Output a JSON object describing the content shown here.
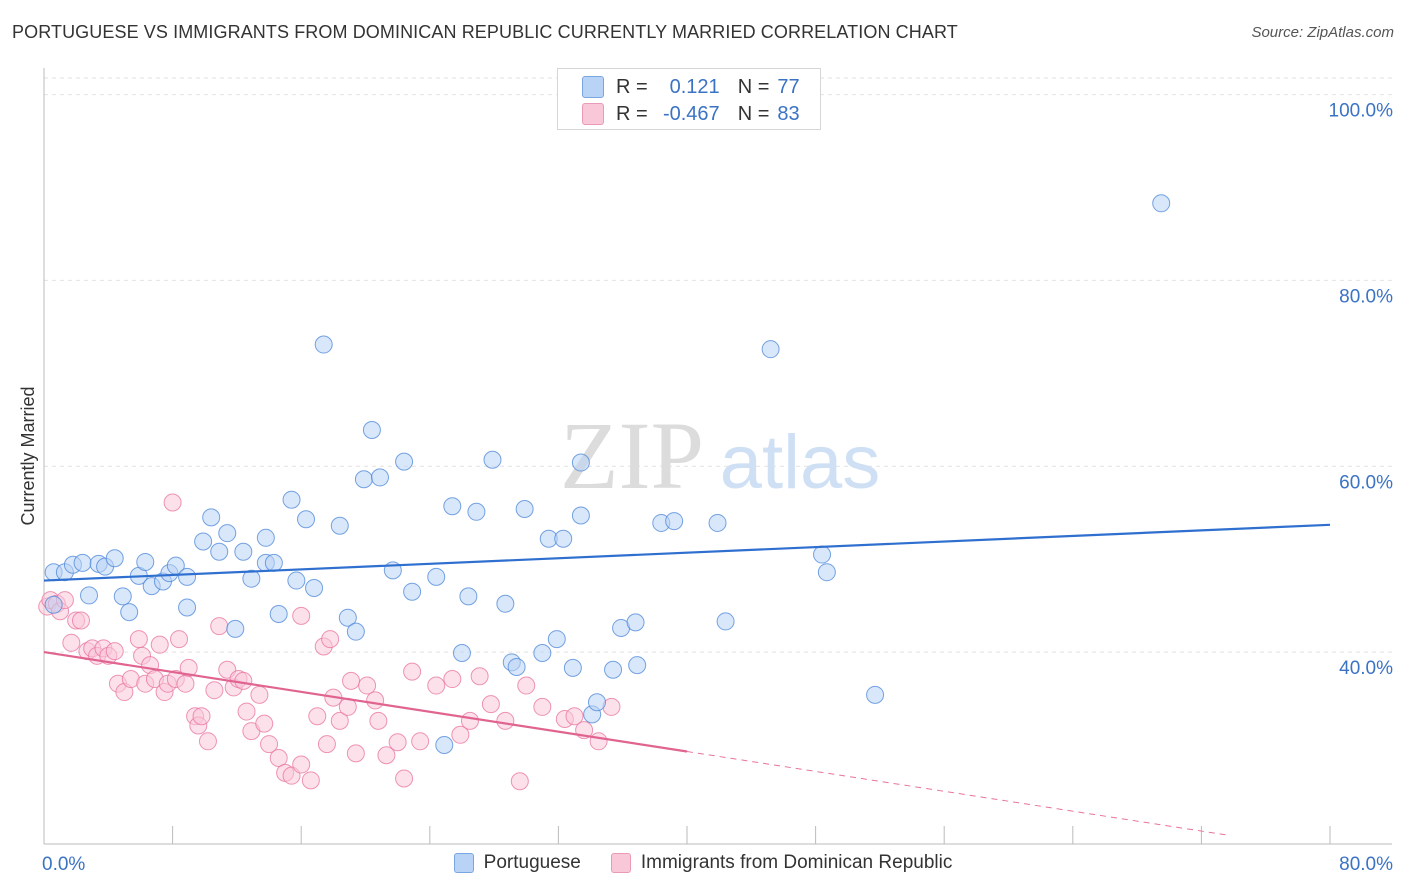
{
  "title": "PORTUGUESE VS IMMIGRANTS FROM DOMINICAN REPUBLIC CURRENTLY MARRIED CORRELATION CHART",
  "source": "Source: ZipAtlas.com",
  "watermark": {
    "zip": "ZIP",
    "atlas": "atlas"
  },
  "stats": {
    "r_label": "R =",
    "n_label": "N =",
    "rows": [
      {
        "series": "Portuguese",
        "r": "0.121",
        "n": "77",
        "color": "#b9d3f6"
      },
      {
        "series": "Immigrants from Dominican Republic",
        "r": "-0.467",
        "n": "83",
        "color": "#f9c8d8"
      }
    ]
  },
  "chart_data": {
    "type": "scatter",
    "title": "PORTUGUESE VS IMMIGRANTS FROM DOMINICAN REPUBLIC CURRENTLY MARRIED CORRELATION CHART",
    "xlabel": "",
    "ylabel": "Currently Married",
    "xlim": [
      0,
      80
    ],
    "ylim": [
      21.5,
      102
    ],
    "x_tick_labels": [
      "0.0%",
      "80.0%"
    ],
    "y_ticks": [
      40,
      60,
      80,
      100
    ],
    "y_tick_labels": [
      "40.0%",
      "60.0%",
      "80.0%",
      "100.0%"
    ],
    "grid": true,
    "legend_position": "bottom-center",
    "series": [
      {
        "name": "Portuguese",
        "color": "#4a86d8",
        "fill": "#b9d3f6",
        "trend": {
          "x": [
            0,
            80
          ],
          "y": [
            47.7,
            53.7
          ],
          "dashed_x": null
        },
        "points": [
          [
            0.6,
            48.6
          ],
          [
            1.3,
            48.6
          ],
          [
            1.8,
            49.4
          ],
          [
            2.4,
            49.6
          ],
          [
            3.4,
            49.5
          ],
          [
            3.8,
            49.2
          ],
          [
            4.4,
            50.1
          ],
          [
            2.8,
            46.1
          ],
          [
            4.9,
            46.0
          ],
          [
            5.3,
            44.3
          ],
          [
            5.9,
            48.2
          ],
          [
            6.3,
            49.7
          ],
          [
            6.7,
            47.1
          ],
          [
            7.4,
            47.6
          ],
          [
            7.8,
            48.5
          ],
          [
            8.2,
            49.3
          ],
          [
            8.9,
            48.1
          ],
          [
            8.9,
            44.8
          ],
          [
            9.9,
            51.9
          ],
          [
            10.4,
            54.5
          ],
          [
            10.9,
            50.8
          ],
          [
            11.4,
            52.8
          ],
          [
            11.9,
            42.5
          ],
          [
            12.4,
            50.8
          ],
          [
            12.9,
            47.9
          ],
          [
            13.8,
            52.3
          ],
          [
            13.8,
            49.6
          ],
          [
            14.3,
            49.6
          ],
          [
            14.6,
            44.1
          ],
          [
            15.4,
            56.4
          ],
          [
            15.7,
            47.7
          ],
          [
            16.3,
            54.3
          ],
          [
            16.8,
            46.9
          ],
          [
            17.4,
            73.1
          ],
          [
            18.4,
            53.6
          ],
          [
            18.9,
            43.7
          ],
          [
            19.4,
            42.2
          ],
          [
            19.9,
            58.6
          ],
          [
            20.4,
            63.9
          ],
          [
            20.9,
            58.8
          ],
          [
            21.7,
            48.8
          ],
          [
            22.4,
            60.5
          ],
          [
            22.9,
            46.5
          ],
          [
            24.4,
            48.1
          ],
          [
            24.9,
            30.0
          ],
          [
            25.4,
            55.7
          ],
          [
            26.0,
            39.9
          ],
          [
            26.4,
            46.0
          ],
          [
            26.9,
            55.1
          ],
          [
            27.9,
            60.7
          ],
          [
            28.7,
            45.2
          ],
          [
            29.1,
            38.9
          ],
          [
            29.4,
            38.4
          ],
          [
            29.9,
            55.4
          ],
          [
            31.0,
            39.9
          ],
          [
            31.4,
            52.2
          ],
          [
            31.9,
            41.4
          ],
          [
            32.3,
            52.2
          ],
          [
            32.9,
            38.3
          ],
          [
            33.4,
            60.4
          ],
          [
            33.4,
            54.7
          ],
          [
            34.1,
            33.3
          ],
          [
            34.4,
            34.6
          ],
          [
            35.4,
            38.1
          ],
          [
            35.9,
            42.6
          ],
          [
            36.9,
            38.6
          ],
          [
            36.8,
            43.2
          ],
          [
            38.4,
            53.9
          ],
          [
            39.2,
            54.1
          ],
          [
            41.9,
            53.9
          ],
          [
            42.4,
            43.3
          ],
          [
            45.2,
            72.6
          ],
          [
            48.4,
            50.5
          ],
          [
            48.7,
            48.6
          ],
          [
            51.7,
            35.4
          ],
          [
            69.5,
            88.3
          ],
          [
            0.6,
            45.1
          ]
        ]
      },
      {
        "name": "Immigrants from Dominican Republic",
        "color": "#e8739d",
        "fill": "#f9c8d8",
        "trend": {
          "x": [
            0,
            80
          ],
          "y": [
            40.0,
            18.6
          ],
          "dashed_x": 40
        },
        "points": [
          [
            0.2,
            44.9
          ],
          [
            0.4,
            45.6
          ],
          [
            0.8,
            45.2
          ],
          [
            1.0,
            44.4
          ],
          [
            1.3,
            45.6
          ],
          [
            1.7,
            41.0
          ],
          [
            2.0,
            43.4
          ],
          [
            2.3,
            43.4
          ],
          [
            2.7,
            40.1
          ],
          [
            3.0,
            40.4
          ],
          [
            3.3,
            39.6
          ],
          [
            3.7,
            40.4
          ],
          [
            4.0,
            39.6
          ],
          [
            4.4,
            40.1
          ],
          [
            4.6,
            36.6
          ],
          [
            5.0,
            35.7
          ],
          [
            5.4,
            37.1
          ],
          [
            5.9,
            41.4
          ],
          [
            6.1,
            39.6
          ],
          [
            6.3,
            36.6
          ],
          [
            6.6,
            38.6
          ],
          [
            6.9,
            37.1
          ],
          [
            7.2,
            40.8
          ],
          [
            7.5,
            35.7
          ],
          [
            7.7,
            36.6
          ],
          [
            8.2,
            37.1
          ],
          [
            8.4,
            41.4
          ],
          [
            8.8,
            36.6
          ],
          [
            9.0,
            38.3
          ],
          [
            9.4,
            33.1
          ],
          [
            9.6,
            32.1
          ],
          [
            9.8,
            33.1
          ],
          [
            10.2,
            30.4
          ],
          [
            10.6,
            35.9
          ],
          [
            10.9,
            42.8
          ],
          [
            11.4,
            38.1
          ],
          [
            11.8,
            36.2
          ],
          [
            12.1,
            37.1
          ],
          [
            12.4,
            36.9
          ],
          [
            12.6,
            33.6
          ],
          [
            12.9,
            31.5
          ],
          [
            13.4,
            35.4
          ],
          [
            13.7,
            32.3
          ],
          [
            14.0,
            30.1
          ],
          [
            14.6,
            28.6
          ],
          [
            15.0,
            27.0
          ],
          [
            15.4,
            26.7
          ],
          [
            16.0,
            27.9
          ],
          [
            16.6,
            26.2
          ],
          [
            17.0,
            33.1
          ],
          [
            17.6,
            30.1
          ],
          [
            18.0,
            35.1
          ],
          [
            18.4,
            32.6
          ],
          [
            18.9,
            34.1
          ],
          [
            19.4,
            29.1
          ],
          [
            20.1,
            36.4
          ],
          [
            20.8,
            32.6
          ],
          [
            21.3,
            28.9
          ],
          [
            22.0,
            30.3
          ],
          [
            22.4,
            26.4
          ],
          [
            22.9,
            37.9
          ],
          [
            23.4,
            30.4
          ],
          [
            24.4,
            36.4
          ],
          [
            25.4,
            37.1
          ],
          [
            25.9,
            31.1
          ],
          [
            26.5,
            32.6
          ],
          [
            27.1,
            37.4
          ],
          [
            27.8,
            34.4
          ],
          [
            28.7,
            32.6
          ],
          [
            29.6,
            26.1
          ],
          [
            30.0,
            36.4
          ],
          [
            31.0,
            34.1
          ],
          [
            32.4,
            32.8
          ],
          [
            33.0,
            33.1
          ],
          [
            33.6,
            31.6
          ],
          [
            34.5,
            30.4
          ],
          [
            35.3,
            34.1
          ],
          [
            8.0,
            56.1
          ],
          [
            16.0,
            43.9
          ],
          [
            17.4,
            40.6
          ],
          [
            17.8,
            41.4
          ],
          [
            19.1,
            36.9
          ],
          [
            20.6,
            34.8
          ]
        ]
      }
    ]
  }
}
